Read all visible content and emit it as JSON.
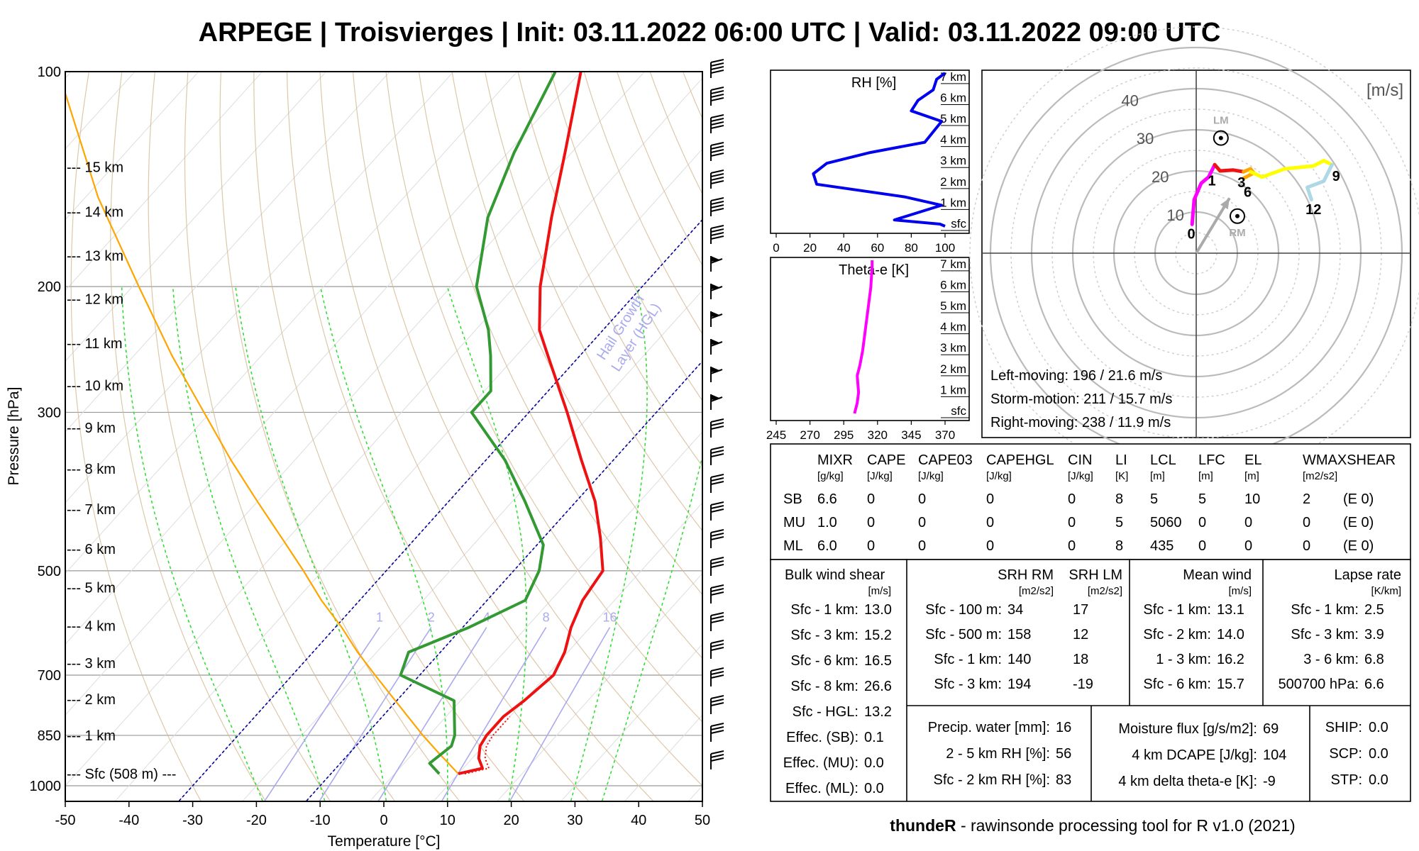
{
  "title": "ARPEGE | Troisvierges | Init: 03.11.2022 06:00 UTC | Valid: 03.11.2022 09:00 UTC",
  "footer": {
    "brand": "thundeR",
    "text": " - rawinsonde processing tool for R v1.0 (2021)"
  },
  "colors": {
    "temp": "#ee1111",
    "dew": "#339933",
    "parcel": "#ffa500",
    "dry_adiabat": "#d2b48c",
    "moist_adiabat": "#33dd33",
    "mixing": "#aaaaee",
    "hgl": "#000099",
    "rh": "#0000ee",
    "thetae": "#ff00ff"
  },
  "chart_data": [
    {
      "type": "line",
      "name": "skew-t",
      "ylabel": "Pressure [hPa]",
      "xlabel": "Temperature [°C]",
      "xlim": [
        -50,
        50
      ],
      "ylim": [
        1050,
        100
      ],
      "x_ticks": [
        "-50",
        "-40",
        "-30",
        "-20",
        "-10",
        "0",
        "10",
        "20",
        "30",
        "40",
        "50"
      ],
      "y_ticks": [
        {
          "p": 100,
          "label": "100"
        },
        {
          "p": 200,
          "label": "200"
        },
        {
          "p": 300,
          "label": "300"
        },
        {
          "p": 500,
          "label": "500"
        },
        {
          "p": 700,
          "label": "700"
        },
        {
          "p": 850,
          "label": "850"
        },
        {
          "p": 1000,
          "label": "1000"
        }
      ],
      "height_labels": [
        {
          "p": 962,
          "label": "--- Sfc (508 m) ---"
        },
        {
          "p": 850,
          "label": "--- 1 km"
        },
        {
          "p": 757,
          "label": "--- 2 km"
        },
        {
          "p": 673,
          "label": "--- 3 km"
        },
        {
          "p": 597,
          "label": "--- 4 km"
        },
        {
          "p": 528,
          "label": "--- 5 km"
        },
        {
          "p": 466,
          "label": "--- 6 km"
        },
        {
          "p": 410,
          "label": "--- 7 km"
        },
        {
          "p": 360,
          "label": "--- 8 km"
        },
        {
          "p": 315,
          "label": "--- 9 km"
        },
        {
          "p": 275,
          "label": "--- 10 km"
        },
        {
          "p": 240,
          "label": "--- 11 km"
        },
        {
          "p": 208,
          "label": "--- 12 km"
        },
        {
          "p": 181,
          "label": "--- 13 km"
        },
        {
          "p": 157,
          "label": "--- 14 km"
        },
        {
          "p": 136,
          "label": "--- 15 km"
        }
      ],
      "mixing_ratio_labels": [
        "1",
        "2",
        "4",
        "8",
        "16"
      ],
      "hgl_label": [
        "Hail Growth",
        "Layer (HGL)"
      ],
      "temperature": [
        [
          962,
          10
        ],
        [
          945,
          13
        ],
        [
          915,
          11
        ],
        [
          880,
          9.5
        ],
        [
          850,
          9
        ],
        [
          800,
          9
        ],
        [
          760,
          10
        ],
        [
          700,
          11
        ],
        [
          650,
          9.5
        ],
        [
          600,
          7
        ],
        [
          550,
          5
        ],
        [
          500,
          4
        ],
        [
          450,
          -1
        ],
        [
          400,
          -7
        ],
        [
          350,
          -15
        ],
        [
          300,
          -24
        ],
        [
          250,
          -35
        ],
        [
          230,
          -40
        ],
        [
          200,
          -46
        ],
        [
          160,
          -54
        ],
        [
          130,
          -61
        ],
        [
          100,
          -70
        ]
      ],
      "dewpoint": [
        [
          962,
          7
        ],
        [
          930,
          4
        ],
        [
          880,
          5
        ],
        [
          850,
          4
        ],
        [
          760,
          -1
        ],
        [
          700,
          -13
        ],
        [
          650,
          -15
        ],
        [
          600,
          -9
        ],
        [
          550,
          -4
        ],
        [
          500,
          -6
        ],
        [
          460,
          -9
        ],
        [
          400,
          -18
        ],
        [
          350,
          -27
        ],
        [
          300,
          -39
        ],
        [
          280,
          -39
        ],
        [
          250,
          -44
        ],
        [
          230,
          -48
        ],
        [
          200,
          -56
        ],
        [
          160,
          -64
        ],
        [
          130,
          -69
        ],
        [
          100,
          -74
        ]
      ],
      "parcel": [
        [
          962,
          10
        ],
        [
          900,
          4
        ],
        [
          850,
          -1
        ],
        [
          800,
          -6
        ],
        [
          700,
          -17
        ],
        [
          650,
          -23
        ],
        [
          600,
          -29
        ],
        [
          550,
          -36
        ],
        [
          500,
          -43
        ],
        [
          450,
          -51
        ],
        [
          400,
          -60
        ],
        [
          350,
          -70
        ],
        [
          300,
          -81
        ],
        [
          250,
          -94
        ],
        [
          200,
          -109
        ],
        [
          150,
          -128
        ],
        [
          100,
          -152
        ]
      ],
      "wind_barb_count": 26
    },
    {
      "type": "line",
      "name": "rh-profile",
      "title": "RH [%]",
      "xlim": [
        0,
        100
      ],
      "x_ticks": [
        "0",
        "20",
        "40",
        "60",
        "80",
        "100"
      ],
      "height_labels": [
        "sfc",
        "1 km",
        "2 km",
        "3 km",
        "4 km",
        "5 km",
        "6 km",
        "7 km"
      ],
      "points": [
        [
          0,
          100
        ],
        [
          0.1,
          97
        ],
        [
          0.3,
          70
        ],
        [
          1,
          98
        ],
        [
          1.4,
          76
        ],
        [
          2,
          24
        ],
        [
          2.5,
          22
        ],
        [
          3,
          30
        ],
        [
          3.5,
          55
        ],
        [
          4,
          88
        ],
        [
          5,
          98
        ],
        [
          5.5,
          80
        ],
        [
          6,
          84
        ],
        [
          6.5,
          93
        ],
        [
          7,
          95
        ],
        [
          7.3,
          100
        ]
      ]
    },
    {
      "type": "line",
      "name": "thetae-profile",
      "title": "Theta-e [K]",
      "xlim": [
        245,
        370
      ],
      "x_ticks": [
        "245",
        "270",
        "295",
        "320",
        "345",
        "370"
      ],
      "height_labels": [
        "sfc",
        "1 km",
        "2 km",
        "3 km",
        "4 km",
        "5 km",
        "6 km",
        "7 km"
      ],
      "points": [
        [
          0,
          303
        ],
        [
          0.5,
          305
        ],
        [
          1,
          306
        ],
        [
          1.8,
          305
        ],
        [
          2.3,
          307
        ],
        [
          3,
          309
        ],
        [
          4,
          311
        ],
        [
          5,
          313
        ],
        [
          6,
          315
        ],
        [
          7,
          316
        ],
        [
          7.3,
          316
        ]
      ]
    },
    {
      "type": "line",
      "name": "hodograph",
      "units_label": "[m/s]",
      "ring_labels": [
        "10",
        "20",
        "30",
        "40"
      ],
      "level_labels": [
        "0",
        "1",
        "3",
        "6",
        "9",
        "12"
      ],
      "segments": [
        {
          "color": "#ff00ff",
          "points": [
            [
              -1,
              7
            ],
            [
              -0.5,
              13
            ],
            [
              1.2,
              17
            ],
            [
              3,
              18.5
            ],
            [
              4.5,
              21.5
            ]
          ]
        },
        {
          "color": "#ee1111",
          "points": [
            [
              4.5,
              21.5
            ],
            [
              5.8,
              20
            ],
            [
              9,
              20.2
            ],
            [
              11.5,
              19.8
            ]
          ]
        },
        {
          "color": "#ffa500",
          "points": [
            [
              11.5,
              19.8
            ],
            [
              13.2,
              20.5
            ],
            [
              14,
              19.5
            ],
            [
              11.5,
              18.2
            ]
          ]
        },
        {
          "color": "#ffff00",
          "points": [
            [
              13.2,
              19.8
            ],
            [
              16,
              18.5
            ],
            [
              21.5,
              20.5
            ],
            [
              28.5,
              21.2
            ],
            [
              31,
              22.5
            ],
            [
              33,
              21.5
            ]
          ]
        },
        {
          "color": "#add8e6",
          "points": [
            [
              33,
              21.5
            ],
            [
              31,
              17.5
            ],
            [
              27,
              16
            ],
            [
              28,
              13
            ]
          ]
        }
      ],
      "storm_motion": {
        "u": 8.1,
        "v": 13.4
      },
      "left_mover": {
        "label": "LM",
        "u": 6,
        "v": 28
      },
      "right_mover": {
        "label": "RM",
        "u": 10,
        "v": 9
      },
      "left_moving_text": "Left-moving: 196 / 21.6 m/s",
      "storm_motion_text": "Storm-motion: 211 / 15.7 m/s",
      "right_moving_text": "Right-moving: 238 / 11.9 m/s"
    },
    {
      "type": "table",
      "name": "parcel-table",
      "headers": [
        "MIXR",
        "CAPE",
        "CAPE03",
        "CAPEHGL",
        "CIN",
        "LI",
        "LCL",
        "LFC",
        "EL",
        "WMAXSHEAR"
      ],
      "units": [
        "[g/kg]",
        "[J/kg]",
        "[J/kg]",
        "[J/kg]",
        "[J/kg]",
        "[K]",
        "[m]",
        "[m]",
        "[m]",
        "[m2/s2]"
      ],
      "rows": [
        {
          "name": "SB",
          "values": [
            "6.6",
            "0",
            "0",
            "0",
            "0",
            "8",
            "5",
            "5",
            "10",
            "2"
          ],
          "extra": "(E 0)"
        },
        {
          "name": "MU",
          "values": [
            "1.0",
            "0",
            "0",
            "0",
            "0",
            "5",
            "5060",
            "0",
            "0",
            "0"
          ],
          "extra": "(E 0)"
        },
        {
          "name": "ML",
          "values": [
            "6.0",
            "0",
            "0",
            "0",
            "0",
            "8",
            "435",
            "0",
            "0",
            "0"
          ],
          "extra": "(E 0)"
        }
      ]
    }
  ],
  "shear": {
    "title": "Bulk wind shear",
    "unit": "[m/s]",
    "rows": [
      [
        "Sfc - 1 km:",
        "13.0"
      ],
      [
        "Sfc - 3 km:",
        "15.2"
      ],
      [
        "Sfc - 6 km:",
        "16.5"
      ],
      [
        "Sfc - 8 km:",
        "26.6"
      ],
      [
        "Sfc - HGL:",
        "13.2"
      ],
      [
        "Effec. (SB):",
        "0.1"
      ],
      [
        "Effec. (MU):",
        "0.0"
      ],
      [
        "Effec. (ML):",
        "0.0"
      ]
    ]
  },
  "srh": {
    "col1": "SRH RM",
    "col2": "SRH LM",
    "unit": "[m2/s2]",
    "rows": [
      [
        "Sfc - 100 m:",
        "34",
        "17"
      ],
      [
        "Sfc - 500 m:",
        "158",
        "12"
      ],
      [
        "Sfc - 1 km:",
        "140",
        "18"
      ],
      [
        "Sfc - 3 km:",
        "194",
        "-19"
      ]
    ]
  },
  "mean_wind": {
    "title": "Mean wind",
    "unit": "[m/s]",
    "rows": [
      [
        "Sfc - 1 km:",
        "13.1"
      ],
      [
        "Sfc - 2 km:",
        "14.0"
      ],
      [
        "1 - 3 km:",
        "16.2"
      ],
      [
        "Sfc - 6 km:",
        "15.7"
      ]
    ]
  },
  "lapse": {
    "title": "Lapse rate",
    "unit": "[K/km]",
    "rows": [
      [
        "Sfc - 1 km:",
        "2.5"
      ],
      [
        "Sfc - 3 km:",
        "3.9"
      ],
      [
        "3 - 6 km:",
        "6.8"
      ],
      [
        "500700 hPa:",
        "6.6"
      ]
    ]
  },
  "moisture": {
    "rows": [
      [
        "Precip. water [mm]:",
        "16"
      ],
      [
        "2 - 5 km RH [%]:",
        "56"
      ],
      [
        "Sfc - 2 km RH [%]:",
        "83"
      ]
    ]
  },
  "flux": {
    "rows": [
      [
        "Moisture flux [g/s/m2]:",
        "69"
      ],
      [
        "4 km DCAPE [J/kg]:",
        "104"
      ],
      [
        "4 km delta theta-e [K]:",
        "-9"
      ]
    ]
  },
  "indices": {
    "rows": [
      [
        "SHIP:",
        "0.0"
      ],
      [
        "SCP:",
        "0.0"
      ],
      [
        "STP:",
        "0.0"
      ]
    ]
  }
}
